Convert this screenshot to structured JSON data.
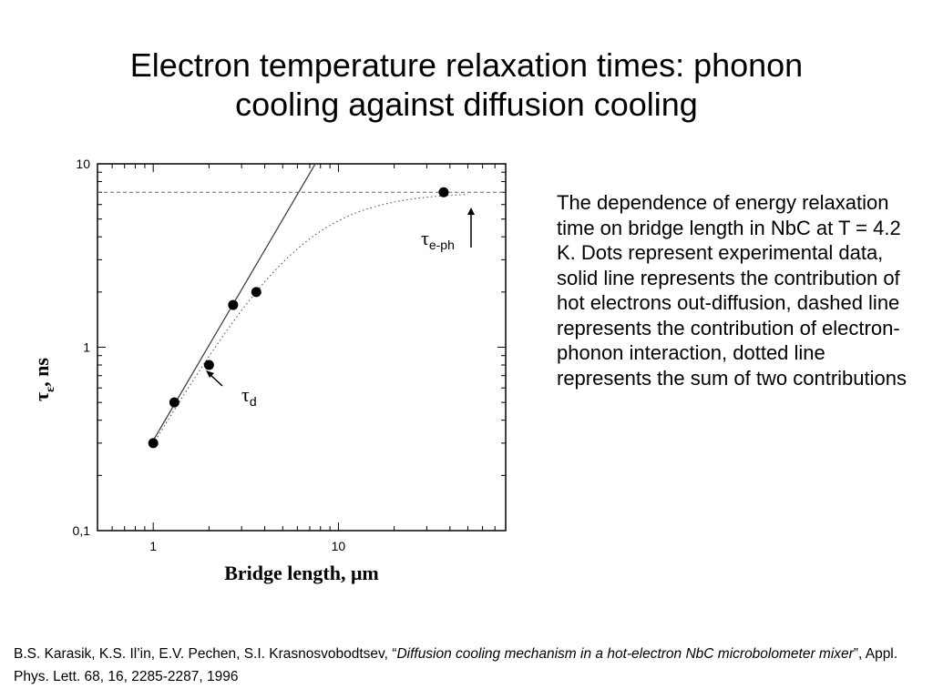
{
  "slide": {
    "title_line1": "Electron temperature relaxation times: phonon",
    "title_line2": "cooling against diffusion cooling"
  },
  "caption": "The dependence of energy relaxation time on bridge length in NbC at T = 4.2 K. Dots represent experimental data, solid line represents the contribution of hot electrons out-diffusion, dashed line represents the contribution of electron-phonon interaction, dotted line represents the sum of two contributions",
  "citation": {
    "authors": "B.S. Karasik, K.S. Il’in, E.V. Pechen, S.I. Krasnosvobodtsev, “",
    "paper_title": "Diffusion cooling mechanism in a hot-electron NbC microbolometer mixer",
    "journal": "”, Appl. Phys. Lett. 68, 16, 2285-2287, 1996"
  },
  "chart_data": {
    "type": "scatter",
    "xlabel": "Bridge length, μm",
    "ylabel_symbol": "τ",
    "ylabel_subscript": "ε",
    "ylabel_unit": ", ns",
    "x_scale": "log",
    "y_scale": "log",
    "xlim": [
      0.5,
      80
    ],
    "ylim": [
      0.1,
      10
    ],
    "x_ticks": [
      {
        "value": 1,
        "label": "1"
      },
      {
        "value": 10,
        "label": "10"
      }
    ],
    "y_ticks": [
      {
        "value": 0.1,
        "label": "0,1"
      },
      {
        "value": 1,
        "label": "1"
      },
      {
        "value": 10,
        "label": "10"
      }
    ],
    "grid": false,
    "series": [
      {
        "kind": "points",
        "x": [
          1.0,
          1.3,
          2.0,
          2.7,
          3.6,
          37
        ],
        "y": [
          0.3,
          0.5,
          0.8,
          1.7,
          2.0,
          7.0
        ]
      },
      {
        "kind": "solid-line",
        "description": "out-diffusion",
        "x": [
          1.0,
          7.5
        ],
        "y": [
          0.31,
          10.0
        ]
      },
      {
        "kind": "dashed-line",
        "description": "electron-phonon",
        "y_const": 7.0
      },
      {
        "kind": "dotted-line",
        "description": "sum",
        "tau_d_at_1um": 0.31,
        "exponent": 1.72,
        "tau_eph": 7.0
      }
    ],
    "annotations": [
      {
        "symbol": "τ",
        "subscript": "e-ph"
      },
      {
        "symbol": "τ",
        "subscript": "d"
      }
    ]
  }
}
